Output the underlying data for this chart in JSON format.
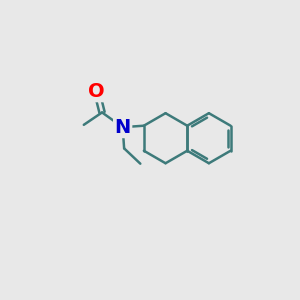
{
  "background_color": "#e8e8e8",
  "bond_color": "#3d7a7a",
  "N_color": "#0000cc",
  "O_color": "#ff0000",
  "bond_width": 1.8,
  "figsize": [
    3.0,
    3.0
  ],
  "dpi": 100
}
